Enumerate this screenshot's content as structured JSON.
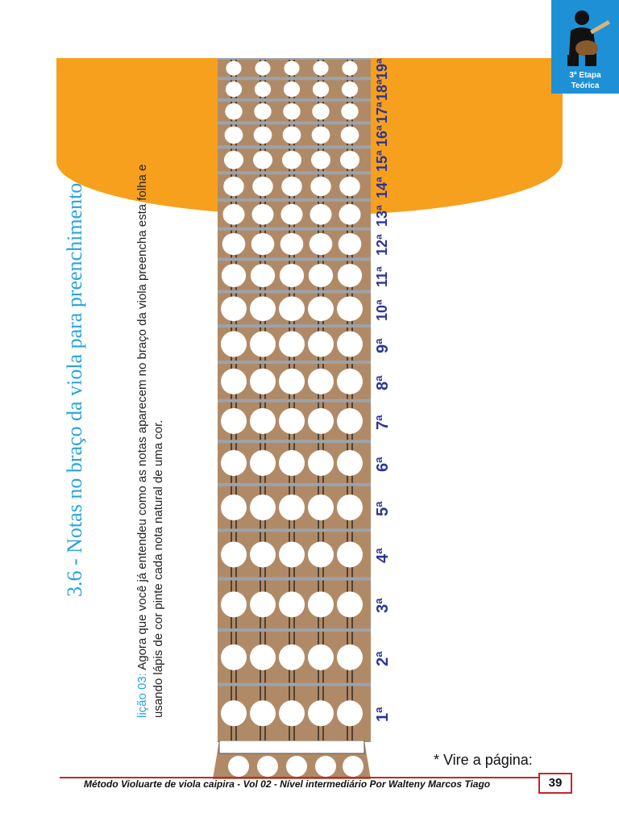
{
  "badge": {
    "line1": "3ª Etapa",
    "line2": "Teórica",
    "color": "#1e90d6",
    "icon": "guitarist-icon"
  },
  "colors": {
    "orange": "#f6a01e",
    "blue_title": "#2aa3dc",
    "fret_number": "#2c3594",
    "wood": "#b08a67",
    "red_line": "#c0282d"
  },
  "section_title": "3.6 - Notas no braço da viola para preenchimento",
  "lesson": {
    "label": "lição 03:",
    "line1": "Agora que você já entendeu como as notas aparecem no braço da viola preencha esta folha e",
    "line2": "usando lápis de cor pinte cada nota natural de uma cor."
  },
  "frets": [
    "1ª",
    "2ª",
    "3ª",
    "4ª",
    "5ª",
    "6ª",
    "7ª",
    "8ª",
    "9ª",
    "10ª",
    "11ª",
    "12ª",
    "13ª",
    "14ª",
    "15ª",
    "16ª",
    "17ª",
    "18ª",
    "19ª"
  ],
  "turn_page_note": "* Vire a página:",
  "footer": {
    "text": "Método Violuarte de viola caipira - Vol 02 - Nível intermediário Por Walteny Marcos Tiago",
    "page_number": "39"
  }
}
